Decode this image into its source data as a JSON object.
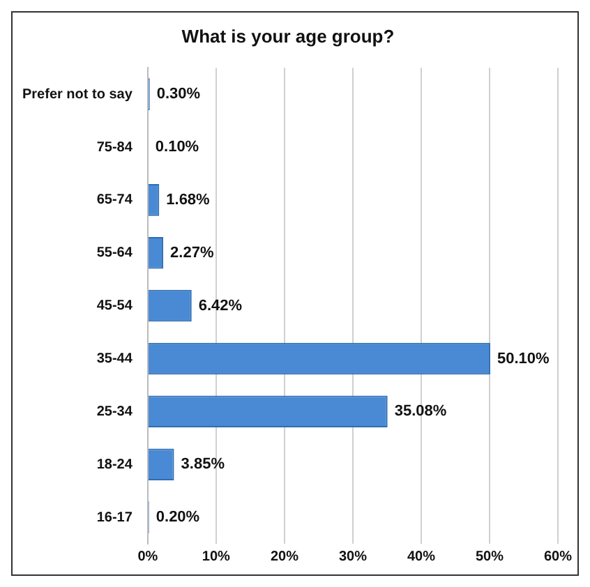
{
  "chart_data": {
    "type": "bar",
    "orientation": "horizontal",
    "title": "What is your age group?",
    "categories": [
      "Prefer not to say",
      "75-84",
      "65-74",
      "55-64",
      "45-54",
      "35-44",
      "25-34",
      "18-24",
      "16-17"
    ],
    "values": [
      0.3,
      0.1,
      1.68,
      2.27,
      6.42,
      50.1,
      35.08,
      3.85,
      0.2
    ],
    "value_labels": [
      "0.30%",
      "0.10%",
      "1.68%",
      "2.27%",
      "6.42%",
      "50.10%",
      "35.08%",
      "3.85%",
      "0.20%"
    ],
    "color": "#4a8ad4",
    "xlim": [
      0,
      60
    ],
    "xticks": [
      {
        "value": 0,
        "label": "0%"
      },
      {
        "value": 10,
        "label": "10%"
      },
      {
        "value": 20,
        "label": "20%"
      },
      {
        "value": 30,
        "label": "30%"
      },
      {
        "value": 40,
        "label": "40%"
      },
      {
        "value": 50,
        "label": "50%"
      },
      {
        "value": 60,
        "label": "60%"
      }
    ],
    "grid": "x",
    "legend": false
  }
}
